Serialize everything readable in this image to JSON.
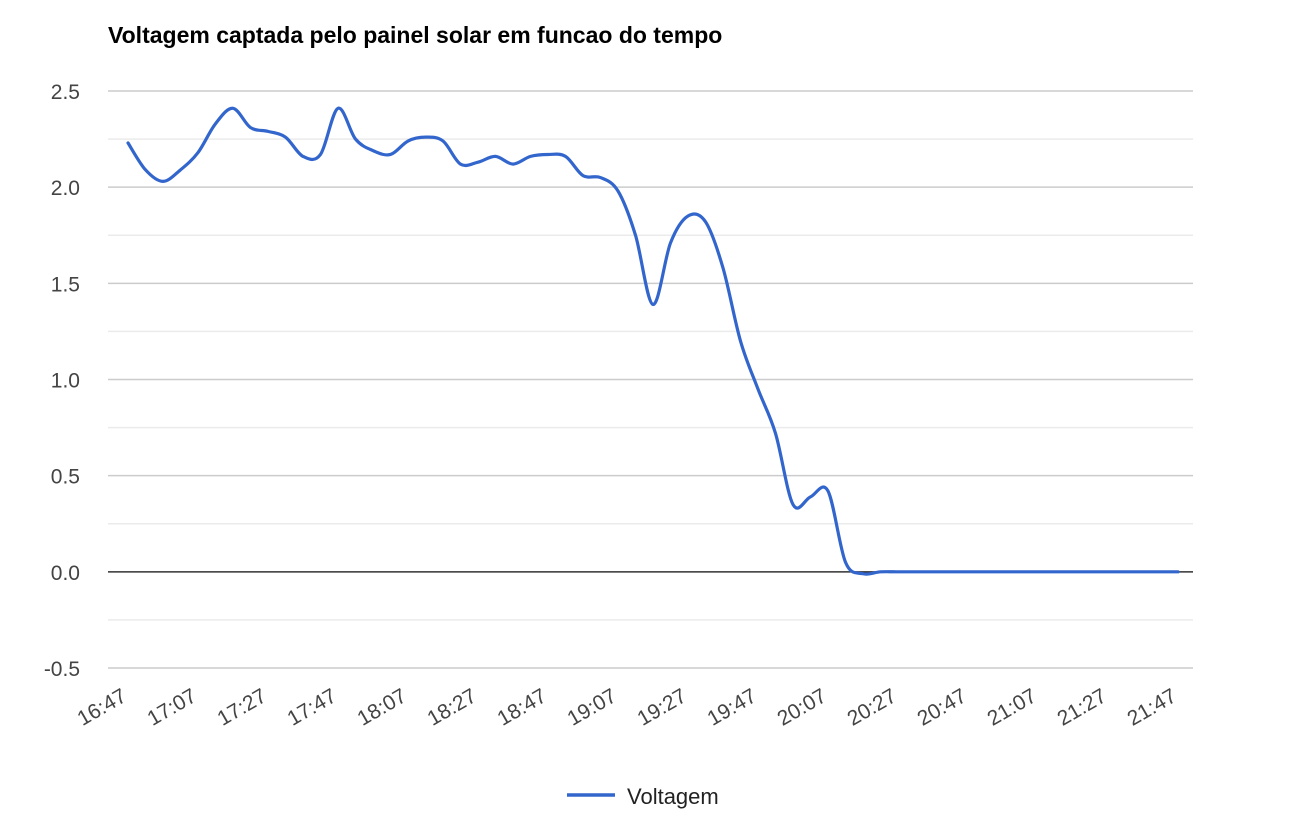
{
  "chart_data": {
    "type": "line",
    "title": "Voltagem captada pelo painel solar em funcao do tempo",
    "xlabel": "",
    "ylabel": "",
    "x_tick_labels": [
      "16:47",
      "17:07",
      "17:27",
      "17:47",
      "18:07",
      "18:27",
      "18:47",
      "19:07",
      "19:27",
      "19:47",
      "20:07",
      "20:27",
      "20:47",
      "21:07",
      "21:27",
      "21:47"
    ],
    "y_tick_labels": [
      "-0.5",
      "0.0",
      "0.5",
      "1.0",
      "1.5",
      "2.0",
      "2.5"
    ],
    "ylim": [
      -0.5,
      2.5
    ],
    "grid": true,
    "legend_position": "bottom",
    "smooth": true,
    "x_minutes": [
      0,
      5,
      10,
      15,
      20,
      25,
      30,
      35,
      40,
      45,
      50,
      55,
      60,
      65,
      70,
      75,
      80,
      85,
      90,
      95,
      100,
      105,
      110,
      115,
      120,
      125,
      130,
      135,
      140,
      145,
      150,
      155,
      160,
      165,
      170,
      175,
      180,
      185,
      190,
      195,
      200,
      205,
      210,
      215,
      220,
      225,
      230,
      235,
      240,
      245,
      250,
      255,
      260,
      265,
      270,
      275,
      280,
      285,
      290,
      295,
      300
    ],
    "series": [
      {
        "name": "Voltagem",
        "color": "#3366cc",
        "values": [
          2.23,
          2.09,
          2.03,
          2.09,
          2.18,
          2.33,
          2.41,
          2.31,
          2.29,
          2.26,
          2.16,
          2.17,
          2.41,
          2.25,
          2.19,
          2.17,
          2.24,
          2.26,
          2.24,
          2.12,
          2.13,
          2.16,
          2.12,
          2.16,
          2.17,
          2.16,
          2.06,
          2.05,
          1.98,
          1.75,
          1.39,
          1.71,
          1.85,
          1.82,
          1.58,
          1.2,
          0.95,
          0.72,
          0.35,
          0.39,
          0.42,
          0.05,
          -0.01,
          0.0,
          0.0,
          0.0,
          0.0,
          0.0,
          0.0,
          0.0,
          0.0,
          0.0,
          0.0,
          0.0,
          0.0,
          0.0,
          0.0,
          0.0,
          0.0,
          0.0,
          0.0
        ]
      }
    ]
  }
}
